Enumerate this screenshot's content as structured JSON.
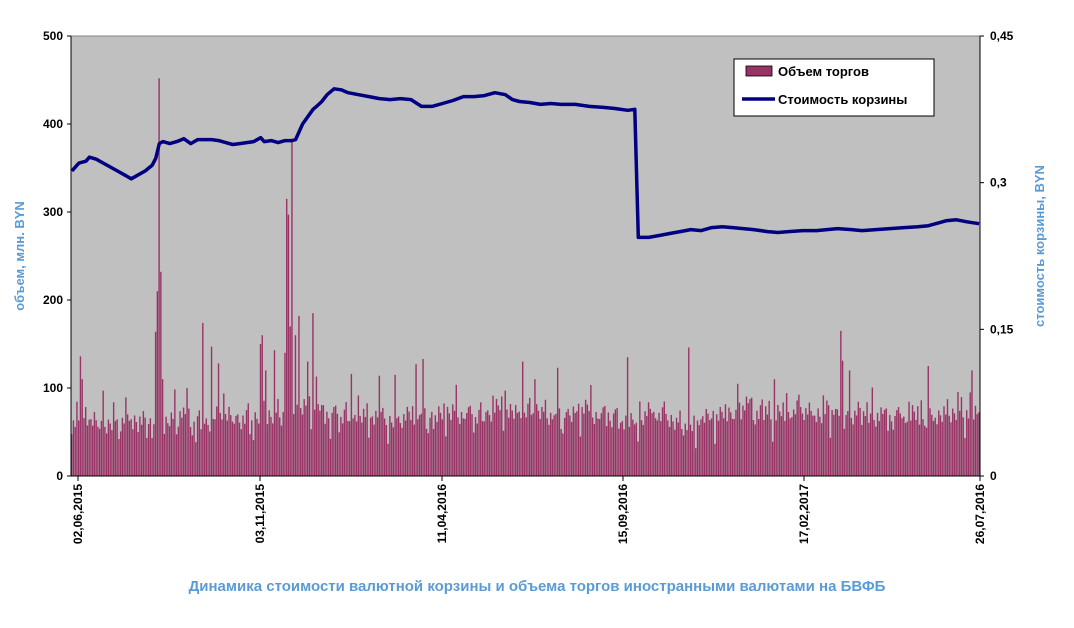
{
  "chart_data": {
    "type": "bar+line",
    "caption": "Динамика стоимости валютной корзины и объема торгов иностранными валютами на БВФБ",
    "left_axis": {
      "label": "объем, млн. BYN",
      "ylim": [
        0,
        500
      ],
      "ticks": [
        "0",
        "100",
        "200",
        "300",
        "400",
        "500"
      ]
    },
    "right_axis": {
      "label": "стоимость корзины, BYN",
      "ylim": [
        0,
        0.45
      ],
      "ticks": [
        "0",
        "0,15",
        "0,3",
        "0,45"
      ]
    },
    "x_tick_labels": [
      "02,06,2015",
      "03,11,2015",
      "11,04,2016",
      "15,09,2016",
      "17,02,2017",
      "26,07,2016"
    ],
    "legend": {
      "placement": "top-right",
      "entries": [
        "Объем торгов",
        "Стоимость корзины"
      ]
    },
    "grid": false,
    "colors": {
      "plot_bg": "#c0c0c0",
      "bar_fill": "#993366",
      "line": "#000080",
      "axis_title": "#5b9bd5"
    },
    "bar_series": {
      "name": "Объем торгов",
      "count": 520,
      "baseline": [
        65,
        64,
        66,
        63,
        62,
        60,
        58,
        57,
        60,
        62,
        63,
        64,
        66,
        62,
        60,
        58,
        56,
        55,
        54,
        56,
        60,
        64,
        68,
        70,
        66,
        64,
        62,
        60,
        58,
        62,
        68,
        74,
        72,
        70,
        68,
        66,
        64,
        62,
        63,
        64,
        66,
        68,
        70,
        72,
        74,
        72,
        70,
        68,
        70,
        72,
        74,
        76,
        74,
        72,
        70,
        68,
        66,
        64,
        66,
        68,
        70,
        72,
        70,
        68,
        66,
        64,
        62,
        60,
        62,
        64,
        66,
        68,
        70,
        68,
        66,
        64,
        62,
        64,
        66,
        68,
        70,
        72,
        74,
        72,
        70,
        68,
        66,
        68,
        70,
        72,
        74,
        76,
        78,
        76,
        74,
        72,
        70,
        68,
        70,
        72,
        74,
        72,
        70,
        68,
        66,
        64,
        66,
        68,
        70,
        72,
        74,
        76,
        74,
        72,
        70,
        68,
        66,
        64,
        62,
        60,
        62,
        64,
        66,
        68,
        70,
        72,
        70,
        68,
        66,
        64,
        62,
        60,
        58,
        56,
        58,
        60,
        62,
        64,
        66,
        68,
        70,
        72,
        74,
        76,
        78,
        80,
        78,
        76,
        74,
        72,
        70,
        68,
        70,
        72,
        74,
        76,
        78,
        76,
        74,
        72,
        70,
        68,
        70,
        72,
        74,
        72,
        70,
        68,
        66,
        68,
        70,
        72,
        74,
        72,
        70,
        68,
        66,
        64,
        66,
        68,
        70,
        72,
        70,
        68,
        66,
        64,
        66,
        68,
        70,
        72,
        74,
        76,
        74,
        72,
        70,
        68
      ],
      "spikes": [
        {
          "i": 5,
          "v": 136
        },
        {
          "i": 6,
          "v": 110
        },
        {
          "i": 18,
          "v": 97
        },
        {
          "i": 48,
          "v": 164
        },
        {
          "i": 49,
          "v": 210
        },
        {
          "i": 50,
          "v": 452
        },
        {
          "i": 51,
          "v": 232
        },
        {
          "i": 52,
          "v": 110
        },
        {
          "i": 66,
          "v": 100
        },
        {
          "i": 75,
          "v": 174
        },
        {
          "i": 80,
          "v": 147
        },
        {
          "i": 84,
          "v": 128
        },
        {
          "i": 108,
          "v": 150
        },
        {
          "i": 109,
          "v": 160
        },
        {
          "i": 111,
          "v": 120
        },
        {
          "i": 116,
          "v": 143
        },
        {
          "i": 122,
          "v": 140
        },
        {
          "i": 123,
          "v": 315
        },
        {
          "i": 124,
          "v": 297
        },
        {
          "i": 125,
          "v": 170
        },
        {
          "i": 126,
          "v": 380
        },
        {
          "i": 128,
          "v": 160
        },
        {
          "i": 130,
          "v": 182
        },
        {
          "i": 135,
          "v": 130
        },
        {
          "i": 138,
          "v": 185
        },
        {
          "i": 140,
          "v": 113
        },
        {
          "i": 160,
          "v": 116
        },
        {
          "i": 176,
          "v": 114
        },
        {
          "i": 185,
          "v": 115
        },
        {
          "i": 197,
          "v": 127
        },
        {
          "i": 201,
          "v": 133
        },
        {
          "i": 258,
          "v": 130
        },
        {
          "i": 265,
          "v": 110
        },
        {
          "i": 278,
          "v": 123
        },
        {
          "i": 318,
          "v": 135
        },
        {
          "i": 353,
          "v": 146
        },
        {
          "i": 402,
          "v": 110
        },
        {
          "i": 440,
          "v": 165
        },
        {
          "i": 441,
          "v": 131
        },
        {
          "i": 445,
          "v": 120
        },
        {
          "i": 490,
          "v": 125
        },
        {
          "i": 515,
          "v": 120
        }
      ]
    },
    "line_series": {
      "name": "Стоимость корзины",
      "points": [
        [
          0,
          0.312
        ],
        [
          4,
          0.32
        ],
        [
          8,
          0.322
        ],
        [
          10,
          0.326
        ],
        [
          14,
          0.324
        ],
        [
          18,
          0.32
        ],
        [
          22,
          0.316
        ],
        [
          26,
          0.312
        ],
        [
          30,
          0.308
        ],
        [
          34,
          0.304
        ],
        [
          38,
          0.308
        ],
        [
          42,
          0.312
        ],
        [
          46,
          0.318
        ],
        [
          48,
          0.325
        ],
        [
          50,
          0.34
        ],
        [
          52,
          0.342
        ],
        [
          56,
          0.34
        ],
        [
          60,
          0.342
        ],
        [
          64,
          0.345
        ],
        [
          68,
          0.34
        ],
        [
          72,
          0.344
        ],
        [
          76,
          0.344
        ],
        [
          80,
          0.344
        ],
        [
          84,
          0.343
        ],
        [
          88,
          0.341
        ],
        [
          92,
          0.339
        ],
        [
          96,
          0.34
        ],
        [
          100,
          0.341
        ],
        [
          104,
          0.342
        ],
        [
          108,
          0.346
        ],
        [
          110,
          0.342
        ],
        [
          114,
          0.343
        ],
        [
          118,
          0.341
        ],
        [
          122,
          0.343
        ],
        [
          126,
          0.343
        ],
        [
          128,
          0.344
        ],
        [
          132,
          0.36
        ],
        [
          136,
          0.37
        ],
        [
          138,
          0.375
        ],
        [
          140,
          0.378
        ],
        [
          143,
          0.383
        ],
        [
          146,
          0.39
        ],
        [
          150,
          0.396
        ],
        [
          154,
          0.395
        ],
        [
          158,
          0.392
        ],
        [
          164,
          0.39
        ],
        [
          170,
          0.388
        ],
        [
          176,
          0.386
        ],
        [
          182,
          0.385
        ],
        [
          188,
          0.386
        ],
        [
          194,
          0.385
        ],
        [
          200,
          0.378
        ],
        [
          206,
          0.378
        ],
        [
          212,
          0.381
        ],
        [
          218,
          0.384
        ],
        [
          224,
          0.388
        ],
        [
          230,
          0.388
        ],
        [
          236,
          0.389
        ],
        [
          242,
          0.392
        ],
        [
          248,
          0.39
        ],
        [
          252,
          0.385
        ],
        [
          256,
          0.383
        ],
        [
          262,
          0.382
        ],
        [
          268,
          0.38
        ],
        [
          274,
          0.381
        ],
        [
          280,
          0.38
        ],
        [
          288,
          0.38
        ],
        [
          296,
          0.378
        ],
        [
          304,
          0.377
        ],
        [
          310,
          0.376
        ],
        [
          318,
          0.374
        ],
        [
          322,
          0.375
        ],
        [
          324,
          0.244
        ],
        [
          330,
          0.244
        ],
        [
          336,
          0.246
        ],
        [
          342,
          0.248
        ],
        [
          348,
          0.25
        ],
        [
          354,
          0.252
        ],
        [
          360,
          0.251
        ],
        [
          366,
          0.254
        ],
        [
          372,
          0.255
        ],
        [
          378,
          0.254
        ],
        [
          384,
          0.253
        ],
        [
          390,
          0.252
        ],
        [
          398,
          0.25
        ],
        [
          404,
          0.249
        ],
        [
          410,
          0.25
        ],
        [
          418,
          0.251
        ],
        [
          426,
          0.251
        ],
        [
          432,
          0.252
        ],
        [
          438,
          0.253
        ],
        [
          446,
          0.252
        ],
        [
          452,
          0.251
        ],
        [
          460,
          0.252
        ],
        [
          468,
          0.253
        ],
        [
          476,
          0.254
        ],
        [
          484,
          0.255
        ],
        [
          490,
          0.256
        ],
        [
          496,
          0.259
        ],
        [
          500,
          0.261
        ],
        [
          506,
          0.262
        ],
        [
          512,
          0.26
        ],
        [
          519,
          0.258
        ]
      ]
    }
  }
}
